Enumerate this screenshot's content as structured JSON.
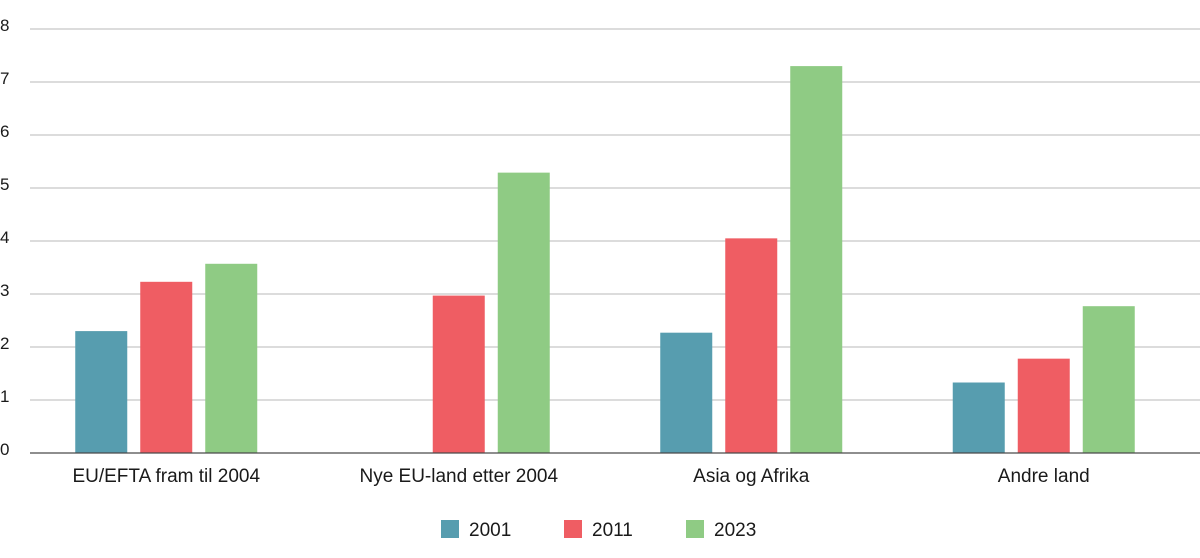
{
  "chart_data": {
    "type": "bar",
    "title": "",
    "xlabel": "",
    "ylabel": "",
    "ylim": [
      0,
      8
    ],
    "yticks": [
      "0",
      "1",
      "2",
      "3",
      "4",
      "5",
      "6",
      "7",
      "8"
    ],
    "grid": true,
    "legend_position": "bottom-center",
    "categories": [
      "EU/EFTA fram til 2004",
      "Nye EU-land etter 2004",
      "Asia og Afrika",
      "Andre land"
    ],
    "series": [
      {
        "name": "2001",
        "color": "#579daf",
        "values": [
          2.3,
          null,
          2.27,
          1.33
        ]
      },
      {
        "name": "2011",
        "color": "#ef5d63",
        "values": [
          3.23,
          2.97,
          4.05,
          1.78
        ]
      },
      {
        "name": "2023",
        "color": "#8fcb84",
        "values": [
          3.57,
          5.29,
          7.3,
          2.77
        ]
      }
    ]
  }
}
